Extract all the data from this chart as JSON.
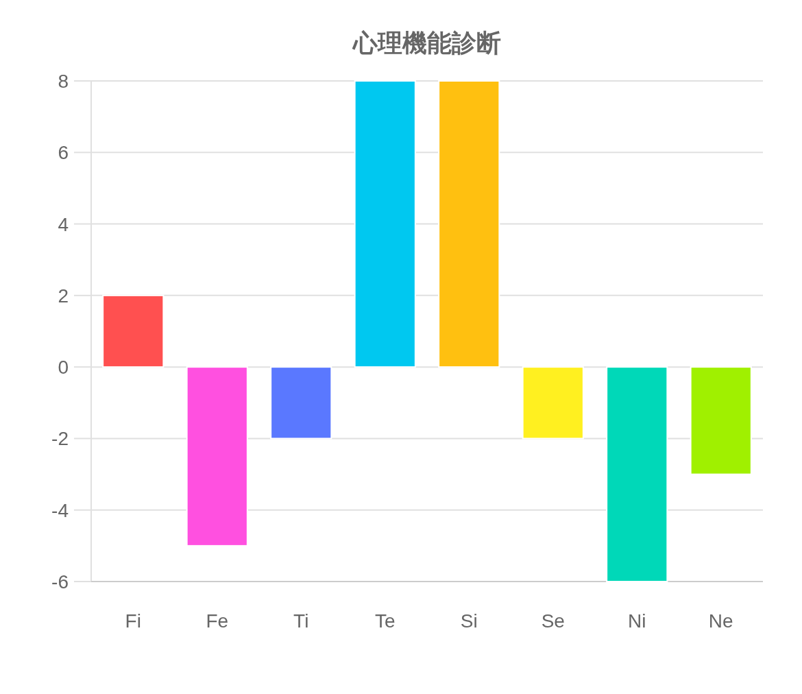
{
  "chart_data": {
    "type": "bar",
    "title": "心理機能診断",
    "categories": [
      "Fi",
      "Fe",
      "Ti",
      "Te",
      "Si",
      "Se",
      "Ni",
      "Ne"
    ],
    "values": [
      2,
      -5,
      -2,
      8,
      8,
      -2,
      -6,
      -3
    ],
    "colors": [
      "#ff5050",
      "#ff50e0",
      "#5a78ff",
      "#00c8f0",
      "#ffc010",
      "#fff020",
      "#00d8b8",
      "#a0f000"
    ],
    "ylim": [
      -6,
      8
    ],
    "yticks": [
      -6,
      -4,
      -2,
      0,
      2,
      4,
      6,
      8
    ],
    "grid": "y"
  }
}
